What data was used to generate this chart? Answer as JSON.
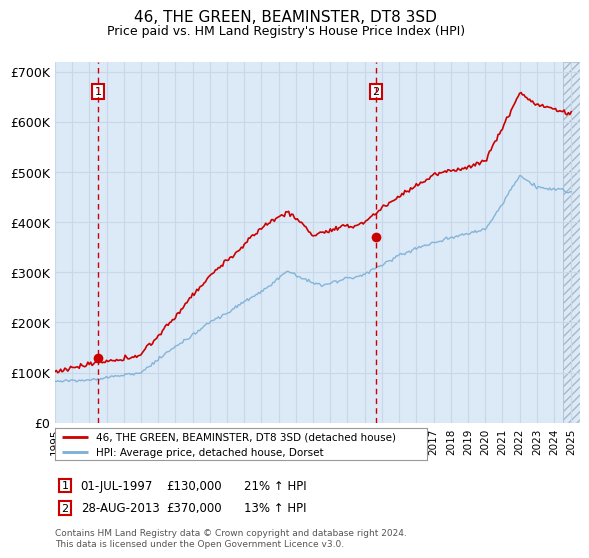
{
  "title": "46, THE GREEN, BEAMINSTER, DT8 3SD",
  "subtitle": "Price paid vs. HM Land Registry's House Price Index (HPI)",
  "legend_line1": "46, THE GREEN, BEAMINSTER, DT8 3SD (detached house)",
  "legend_line2": "HPI: Average price, detached house, Dorset",
  "footnote": "Contains HM Land Registry data © Crown copyright and database right 2024.\nThis data is licensed under the Open Government Licence v3.0.",
  "sale1_label": "1",
  "sale1_date": "01-JUL-1997",
  "sale1_price": "£130,000",
  "sale1_hpi": "21% ↑ HPI",
  "sale2_label": "2",
  "sale2_date": "28-AUG-2013",
  "sale2_price": "£370,000",
  "sale2_hpi": "13% ↑ HPI",
  "sale1_x": 1997.5,
  "sale1_y": 130000,
  "sale2_x": 2013.65,
  "sale2_y": 370000,
  "xlim": [
    1995.0,
    2025.5
  ],
  "ylim": [
    0,
    720000
  ],
  "yticks": [
    0,
    100000,
    200000,
    300000,
    400000,
    500000,
    600000,
    700000
  ],
  "ytick_labels": [
    "£0",
    "£100K",
    "£200K",
    "£300K",
    "£400K",
    "£500K",
    "£600K",
    "£700K"
  ],
  "xticks": [
    1995,
    1996,
    1997,
    1998,
    1999,
    2000,
    2001,
    2002,
    2003,
    2004,
    2005,
    2006,
    2007,
    2008,
    2009,
    2010,
    2011,
    2012,
    2013,
    2014,
    2015,
    2016,
    2017,
    2018,
    2019,
    2020,
    2021,
    2022,
    2023,
    2024,
    2025
  ],
  "bg_color": "#dce9f7",
  "line_color_red": "#cc0000",
  "line_color_blue": "#7bafd4",
  "grid_color": "#c8d8e8",
  "sale_marker_color": "#cc0000",
  "dashed_line_color": "#cc0000",
  "box_edge_color": "#cc0000",
  "hatch_start": 2024.5,
  "hatch_end": 2025.5
}
